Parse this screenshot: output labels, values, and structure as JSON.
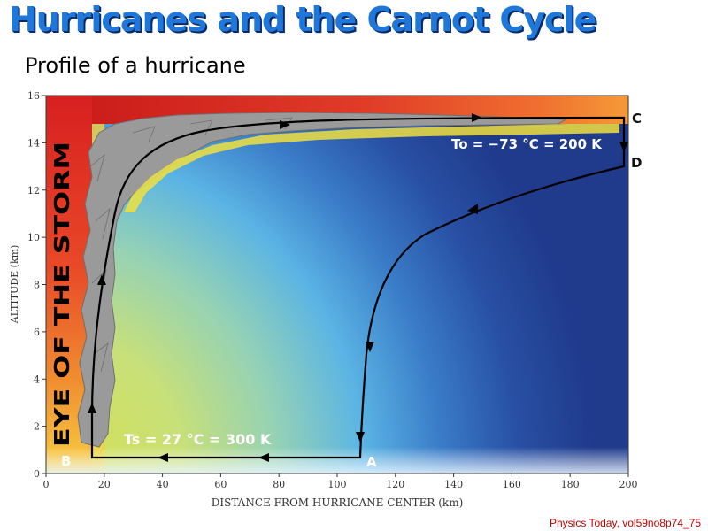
{
  "slide": {
    "title": "Hurricanes and the Carnot Cycle",
    "subtitle": "Profile of a hurricane",
    "credit": "Physics Today, vol59no8p74_75"
  },
  "chart_data": {
    "type": "diagram",
    "xlabel": "DISTANCE FROM HURRICANE CENTER (km)",
    "ylabel": "ALTITUDE (km)",
    "xlim": [
      0,
      200
    ],
    "ylim": [
      0,
      16
    ],
    "x_ticks": [
      0,
      20,
      40,
      60,
      80,
      100,
      120,
      140,
      160,
      180,
      200
    ],
    "y_ticks": [
      0,
      2,
      4,
      6,
      8,
      10,
      12,
      14,
      16
    ],
    "points": [
      {
        "label": "A",
        "x": 108,
        "y": 0.7
      },
      {
        "label": "B",
        "x": 16,
        "y": 0.7
      },
      {
        "label": "C",
        "x": 200,
        "y": 15
      },
      {
        "label": "D",
        "x": 200,
        "y": 13
      }
    ],
    "annotations": {
      "eye": "EYE OF THE STORM",
      "ts_temp": "Ts = 27 °C = 300 K",
      "to_temp": "To = −73 °C = 200 K"
    }
  }
}
